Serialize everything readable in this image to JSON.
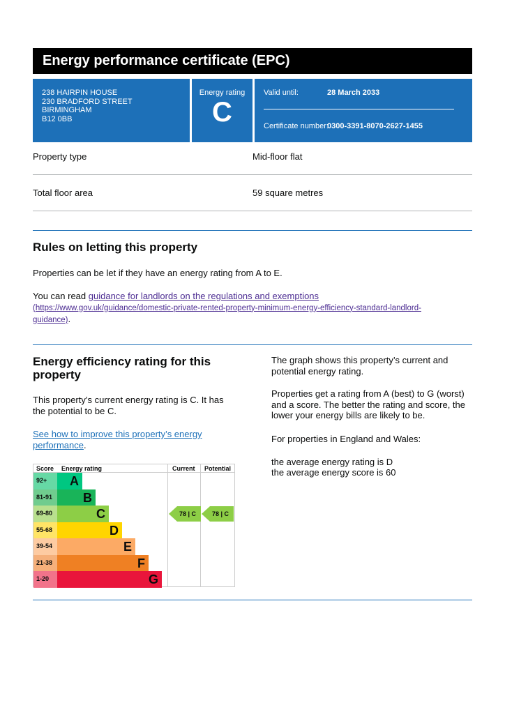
{
  "title": "Energy performance certificate (EPC)",
  "address": [
    "238 HAIRPIN HOUSE",
    "230 BRADFORD STREET",
    "BIRMINGHAM",
    "B12 0BB"
  ],
  "rating": {
    "label": "Energy rating",
    "value": "C"
  },
  "valid": {
    "label": "Valid until:",
    "value": "28 March 2033"
  },
  "cert": {
    "label": "Certificate number:",
    "value": "0300-3391-8070-2627-1455"
  },
  "property_type": {
    "label": "Property type",
    "value": "Mid-floor flat"
  },
  "floor_area": {
    "label": "Total floor area",
    "value": "59 square metres"
  },
  "rules": {
    "heading": "Rules on letting this property",
    "p1": "Properties can be let if they have an energy rating from A to E.",
    "p2_prefix": "You can read ",
    "link": "guidance for landlords on the regulations and exemptions",
    "url": "(https://www.gov.uk/guidance/domestic-private-rented-property-minimum-energy-efficiency-standard-landlord-guidance)",
    "p2_suffix": "."
  },
  "efficiency": {
    "heading": "Energy efficiency rating for this property",
    "p1": "This property’s current energy rating is C. It has the potential to be C.",
    "link": "See how to improve this property’s energy performance",
    "link_suffix": ".",
    "right": [
      "The graph shows this property’s current and potential energy rating.",
      "Properties get a rating from A (best) to G (worst) and a score. The better the rating and score, the lower your energy bills are likely to be.",
      "For properties in England and Wales:"
    ],
    "avg1": "the average energy rating is D",
    "avg2": "the average energy score is 60"
  },
  "chart_data": {
    "type": "table",
    "headers": [
      "Score",
      "Energy rating",
      "Current",
      "Potential"
    ],
    "bands": [
      {
        "score": "92+",
        "letter": "A",
        "color": "#00c781",
        "tint": "#66d9a5"
      },
      {
        "score": "81-91",
        "letter": "B",
        "color": "#19b459",
        "tint": "#70cc8e"
      },
      {
        "score": "69-80",
        "letter": "C",
        "color": "#8dce46",
        "tint": "#b9e08e"
      },
      {
        "score": "55-68",
        "letter": "D",
        "color": "#ffd500",
        "tint": "#ffe466"
      },
      {
        "score": "39-54",
        "letter": "E",
        "color": "#fcaa65",
        "tint": "#fdcba2"
      },
      {
        "score": "21-38",
        "letter": "F",
        "color": "#ef8023",
        "tint": "#f5b07b"
      },
      {
        "score": "1-20",
        "letter": "G",
        "color": "#e9153b",
        "tint": "#f2738a"
      }
    ],
    "current": {
      "score": 78,
      "band": "C",
      "label": "78 | C"
    },
    "potential": {
      "score": 78,
      "band": "C",
      "label": "78 | C"
    }
  }
}
